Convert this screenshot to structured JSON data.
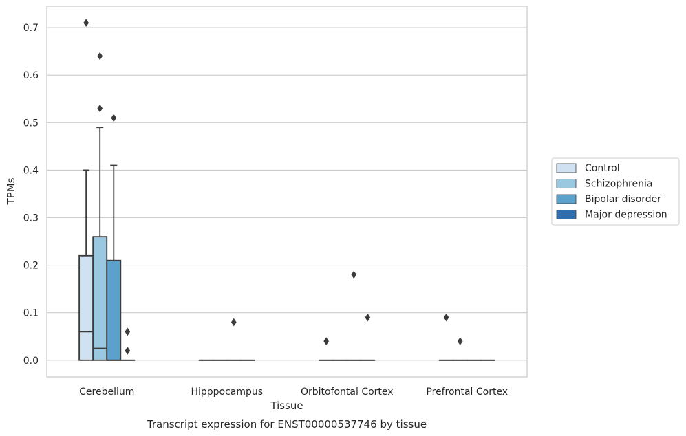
{
  "chart_data": {
    "type": "box",
    "title": "",
    "xlabel": "Tissue",
    "ylabel": "TPMs",
    "caption": "Transcript expression for ENST00000537746 by tissue",
    "ylim": [
      -0.035,
      0.745
    ],
    "yticks": [
      0.0,
      0.1,
      0.2,
      0.3,
      0.4,
      0.5,
      0.6,
      0.7
    ],
    "ytick_labels": [
      "0.0",
      "0.1",
      "0.2",
      "0.3",
      "0.4",
      "0.5",
      "0.6",
      "0.7"
    ],
    "grid": "horizontal",
    "legend_position": "right",
    "categories": [
      "Cerebellum",
      "Hipppocampus",
      "Orbitofontal Cortex",
      "Prefrontal Cortex"
    ],
    "series": [
      {
        "name": "Control",
        "color": "#d0e1f2",
        "boxes": [
          {
            "q1": 0.0,
            "median": 0.06,
            "q3": 0.22,
            "whisker_low": 0.0,
            "whisker_high": 0.4,
            "outliers": [
              0.71
            ]
          },
          {
            "q1": 0.0,
            "median": 0.0,
            "q3": 0.0,
            "whisker_low": 0.0,
            "whisker_high": 0.0,
            "outliers": []
          },
          {
            "q1": 0.0,
            "median": 0.0,
            "q3": 0.0,
            "whisker_low": 0.0,
            "whisker_high": 0.0,
            "outliers": [
              0.04
            ]
          },
          {
            "q1": 0.0,
            "median": 0.0,
            "q3": 0.0,
            "whisker_low": 0.0,
            "whisker_high": 0.0,
            "outliers": [
              0.09
            ]
          }
        ]
      },
      {
        "name": "Schizophrenia",
        "color": "#9ac8e0",
        "boxes": [
          {
            "q1": 0.0,
            "median": 0.025,
            "q3": 0.26,
            "whisker_low": 0.0,
            "whisker_high": 0.49,
            "outliers": [
              0.64,
              0.53
            ]
          },
          {
            "q1": 0.0,
            "median": 0.0,
            "q3": 0.0,
            "whisker_low": 0.0,
            "whisker_high": 0.0,
            "outliers": []
          },
          {
            "q1": 0.0,
            "median": 0.0,
            "q3": 0.0,
            "whisker_low": 0.0,
            "whisker_high": 0.0,
            "outliers": []
          },
          {
            "q1": 0.0,
            "median": 0.0,
            "q3": 0.0,
            "whisker_low": 0.0,
            "whisker_high": 0.0,
            "outliers": [
              0.04
            ]
          }
        ]
      },
      {
        "name": "Bipolar disorder",
        "color": "#5ca0cc",
        "boxes": [
          {
            "q1": 0.0,
            "median": 0.0,
            "q3": 0.21,
            "whisker_low": 0.0,
            "whisker_high": 0.41,
            "outliers": [
              0.51
            ]
          },
          {
            "q1": 0.0,
            "median": 0.0,
            "q3": 0.0,
            "whisker_low": 0.0,
            "whisker_high": 0.0,
            "outliers": [
              0.08
            ]
          },
          {
            "q1": 0.0,
            "median": 0.0,
            "q3": 0.0,
            "whisker_low": 0.0,
            "whisker_high": 0.0,
            "outliers": [
              0.18
            ]
          },
          {
            "q1": 0.0,
            "median": 0.0,
            "q3": 0.0,
            "whisker_low": 0.0,
            "whisker_high": 0.0,
            "outliers": []
          }
        ]
      },
      {
        "name": "Major depression",
        "color": "#2f6fae",
        "boxes": [
          {
            "q1": 0.0,
            "median": 0.0,
            "q3": 0.0,
            "whisker_low": 0.0,
            "whisker_high": 0.0,
            "outliers": [
              0.06,
              0.02
            ]
          },
          {
            "q1": 0.0,
            "median": 0.0,
            "q3": 0.0,
            "whisker_low": 0.0,
            "whisker_high": 0.0,
            "outliers": []
          },
          {
            "q1": 0.0,
            "median": 0.0,
            "q3": 0.0,
            "whisker_low": 0.0,
            "whisker_high": 0.0,
            "outliers": [
              0.09
            ]
          },
          {
            "q1": 0.0,
            "median": 0.0,
            "q3": 0.0,
            "whisker_low": 0.0,
            "whisker_high": 0.0,
            "outliers": []
          }
        ]
      }
    ]
  }
}
